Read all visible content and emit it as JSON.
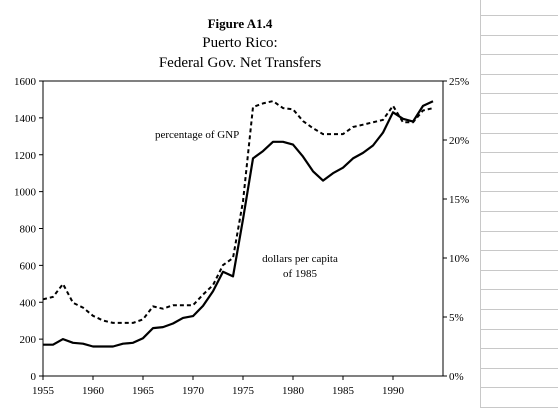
{
  "chart_data": {
    "type": "line",
    "title": "Figure A1.4",
    "subtitle_lines": [
      "Puerto Rico:",
      "Federal Gov. Net Transfers"
    ],
    "xlim": [
      1955,
      1995
    ],
    "x_ticks": [
      "1955",
      "1960",
      "1965",
      "1970",
      "1975",
      "1980",
      "1985",
      "1990"
    ],
    "y_left": {
      "lim": [
        0,
        1600
      ],
      "ticks": [
        "0",
        "200",
        "400",
        "600",
        "800",
        "1000",
        "1200",
        "1400",
        "1600"
      ]
    },
    "y_right": {
      "lim": [
        0,
        25
      ],
      "ticks": [
        "0%",
        "5%",
        "10%",
        "15%",
        "20%",
        "25%"
      ]
    },
    "grid": false,
    "series": [
      {
        "name": "dollars per capita of 1985",
        "label_lines": [
          "dollars per capita",
          "of 1985"
        ],
        "axis": "left",
        "style": "solid",
        "color": "#000000",
        "points": [
          [
            1955,
            170
          ],
          [
            1956,
            170
          ],
          [
            1957,
            200
          ],
          [
            1958,
            180
          ],
          [
            1959,
            175
          ],
          [
            1960,
            160
          ],
          [
            1961,
            160
          ],
          [
            1962,
            160
          ],
          [
            1963,
            175
          ],
          [
            1964,
            180
          ],
          [
            1965,
            205
          ],
          [
            1966,
            260
          ],
          [
            1967,
            265
          ],
          [
            1968,
            285
          ],
          [
            1969,
            315
          ],
          [
            1970,
            325
          ],
          [
            1971,
            380
          ],
          [
            1972,
            460
          ],
          [
            1973,
            565
          ],
          [
            1974,
            540
          ],
          [
            1975,
            850
          ],
          [
            1976,
            1180
          ],
          [
            1977,
            1220
          ],
          [
            1978,
            1270
          ],
          [
            1979,
            1270
          ],
          [
            1980,
            1255
          ],
          [
            1981,
            1190
          ],
          [
            1982,
            1110
          ],
          [
            1983,
            1060
          ],
          [
            1984,
            1100
          ],
          [
            1985,
            1130
          ],
          [
            1986,
            1180
          ],
          [
            1987,
            1210
          ],
          [
            1988,
            1250
          ],
          [
            1989,
            1320
          ],
          [
            1990,
            1430
          ],
          [
            1991,
            1395
          ],
          [
            1992,
            1380
          ],
          [
            1993,
            1465
          ],
          [
            1994,
            1490
          ]
        ]
      },
      {
        "name": "percentage of GNP",
        "label_lines": [
          "percentage of GNP"
        ],
        "axis": "right",
        "style": "dashed",
        "color": "#000000",
        "points": [
          [
            1955,
            6.5
          ],
          [
            1956,
            6.7
          ],
          [
            1957,
            7.8
          ],
          [
            1958,
            6.2
          ],
          [
            1959,
            5.8
          ],
          [
            1960,
            5.1
          ],
          [
            1961,
            4.7
          ],
          [
            1962,
            4.5
          ],
          [
            1963,
            4.5
          ],
          [
            1964,
            4.5
          ],
          [
            1965,
            4.8
          ],
          [
            1966,
            5.9
          ],
          [
            1967,
            5.7
          ],
          [
            1968,
            6.0
          ],
          [
            1969,
            6.0
          ],
          [
            1970,
            6.0
          ],
          [
            1971,
            6.9
          ],
          [
            1972,
            7.7
          ],
          [
            1973,
            9.4
          ],
          [
            1974,
            10.0
          ],
          [
            1975,
            14.8
          ],
          [
            1976,
            22.8
          ],
          [
            1977,
            23.1
          ],
          [
            1978,
            23.3
          ],
          [
            1979,
            22.7
          ],
          [
            1980,
            22.6
          ],
          [
            1981,
            21.6
          ],
          [
            1982,
            21.0
          ],
          [
            1983,
            20.5
          ],
          [
            1984,
            20.5
          ],
          [
            1985,
            20.5
          ],
          [
            1986,
            21.1
          ],
          [
            1987,
            21.3
          ],
          [
            1988,
            21.5
          ],
          [
            1989,
            21.7
          ],
          [
            1990,
            22.9
          ],
          [
            1991,
            21.5
          ],
          [
            1992,
            21.5
          ],
          [
            1993,
            22.5
          ],
          [
            1994,
            22.7
          ]
        ]
      }
    ]
  }
}
